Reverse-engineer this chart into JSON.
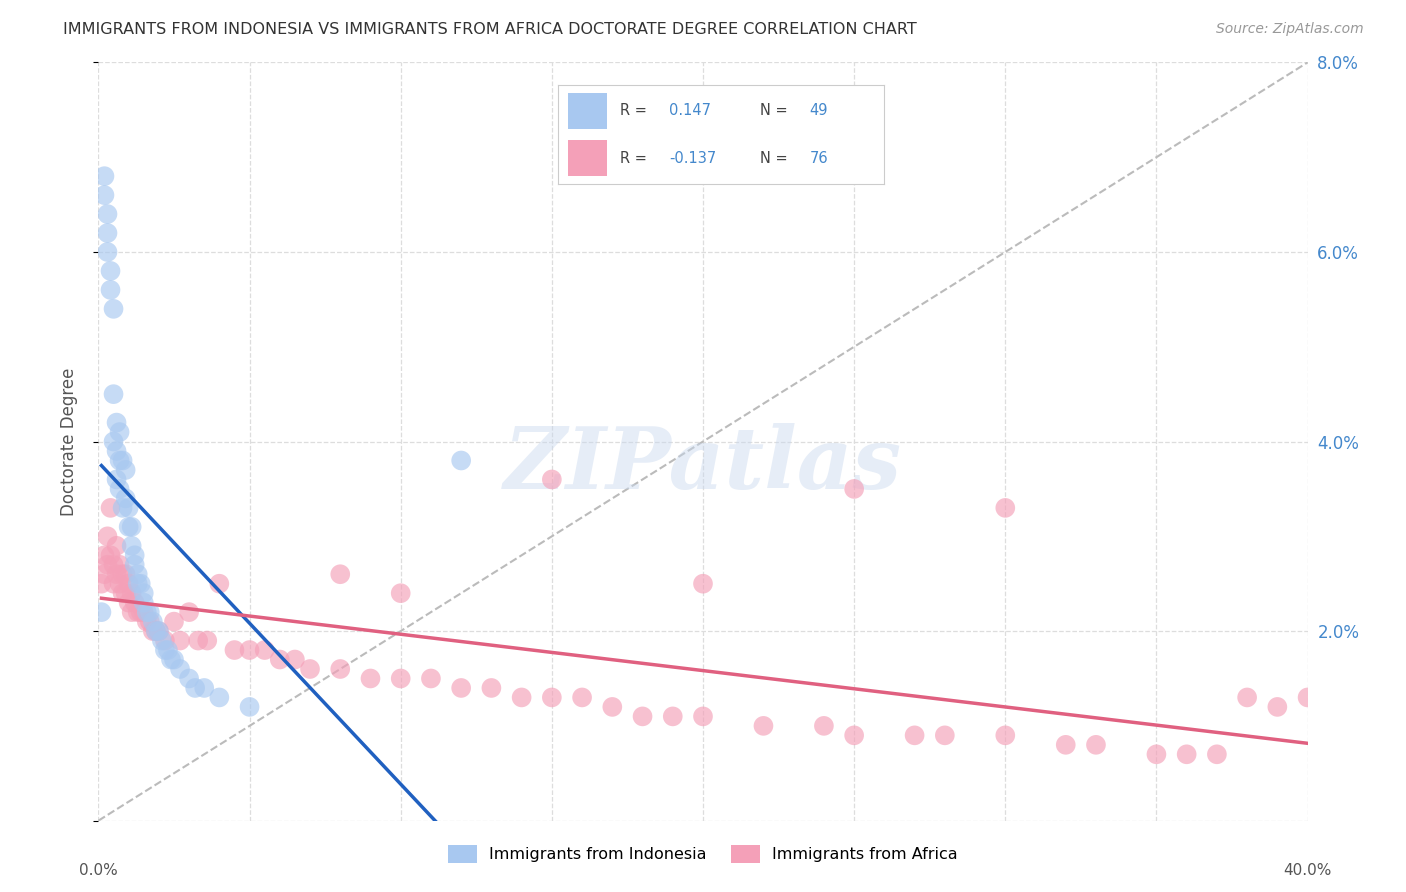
{
  "title": "IMMIGRANTS FROM INDONESIA VS IMMIGRANTS FROM AFRICA DOCTORATE DEGREE CORRELATION CHART",
  "source": "Source: ZipAtlas.com",
  "ylabel": "Doctorate Degree",
  "xlim": [
    0,
    0.4
  ],
  "ylim": [
    0,
    0.08
  ],
  "x_ticks": [
    0.0,
    0.05,
    0.1,
    0.15,
    0.2,
    0.25,
    0.3,
    0.35,
    0.4
  ],
  "y_ticks": [
    0.0,
    0.02,
    0.04,
    0.06,
    0.08
  ],
  "y_tick_labels_right": [
    "",
    "2.0%",
    "4.0%",
    "6.0%",
    "8.0%"
  ],
  "blue_color": "#A8C8F0",
  "pink_color": "#F4A0B8",
  "blue_line_color": "#2060C0",
  "pink_line_color": "#E06080",
  "ref_line_color": "#BBBBBB",
  "background_color": "#FFFFFF",
  "grid_color": "#DDDDDD",
  "title_color": "#333333",
  "source_color": "#999999",
  "watermark": "ZIPatlas",
  "legend_r1": "R =  0.147",
  "legend_n1": "N = 49",
  "legend_r2": "R = -0.137",
  "legend_n2": "N = 76",
  "legend_label1": "Immigrants from Indonesia",
  "legend_label2": "Immigrants from Africa",
  "indonesia_x": [
    0.001,
    0.002,
    0.002,
    0.003,
    0.003,
    0.003,
    0.004,
    0.004,
    0.005,
    0.005,
    0.005,
    0.006,
    0.006,
    0.006,
    0.007,
    0.007,
    0.007,
    0.008,
    0.008,
    0.009,
    0.009,
    0.01,
    0.01,
    0.011,
    0.011,
    0.012,
    0.012,
    0.013,
    0.013,
    0.014,
    0.015,
    0.015,
    0.016,
    0.017,
    0.018,
    0.019,
    0.02,
    0.021,
    0.022,
    0.023,
    0.024,
    0.025,
    0.027,
    0.03,
    0.032,
    0.035,
    0.04,
    0.05,
    0.12
  ],
  "indonesia_y": [
    0.022,
    0.068,
    0.066,
    0.064,
    0.062,
    0.06,
    0.058,
    0.056,
    0.054,
    0.045,
    0.04,
    0.042,
    0.039,
    0.036,
    0.041,
    0.038,
    0.035,
    0.038,
    0.033,
    0.037,
    0.034,
    0.033,
    0.031,
    0.031,
    0.029,
    0.028,
    0.027,
    0.026,
    0.025,
    0.025,
    0.024,
    0.023,
    0.022,
    0.022,
    0.021,
    0.02,
    0.02,
    0.019,
    0.018,
    0.018,
    0.017,
    0.017,
    0.016,
    0.015,
    0.014,
    0.014,
    0.013,
    0.012,
    0.038
  ],
  "africa_x": [
    0.001,
    0.002,
    0.002,
    0.003,
    0.003,
    0.004,
    0.004,
    0.005,
    0.005,
    0.006,
    0.006,
    0.007,
    0.007,
    0.008,
    0.008,
    0.009,
    0.009,
    0.01,
    0.01,
    0.011,
    0.011,
    0.012,
    0.013,
    0.014,
    0.015,
    0.016,
    0.017,
    0.018,
    0.019,
    0.02,
    0.022,
    0.025,
    0.027,
    0.03,
    0.033,
    0.036,
    0.04,
    0.045,
    0.05,
    0.055,
    0.06,
    0.065,
    0.07,
    0.08,
    0.09,
    0.1,
    0.11,
    0.12,
    0.13,
    0.14,
    0.15,
    0.16,
    0.17,
    0.18,
    0.19,
    0.2,
    0.22,
    0.24,
    0.25,
    0.27,
    0.28,
    0.3,
    0.32,
    0.33,
    0.35,
    0.36,
    0.37,
    0.38,
    0.39,
    0.4,
    0.15,
    0.25,
    0.3,
    0.2,
    0.1,
    0.08
  ],
  "africa_y": [
    0.025,
    0.028,
    0.026,
    0.03,
    0.027,
    0.033,
    0.028,
    0.027,
    0.025,
    0.029,
    0.026,
    0.027,
    0.025,
    0.026,
    0.024,
    0.026,
    0.024,
    0.025,
    0.023,
    0.024,
    0.022,
    0.023,
    0.022,
    0.022,
    0.022,
    0.021,
    0.021,
    0.02,
    0.02,
    0.02,
    0.019,
    0.021,
    0.019,
    0.022,
    0.019,
    0.019,
    0.025,
    0.018,
    0.018,
    0.018,
    0.017,
    0.017,
    0.016,
    0.016,
    0.015,
    0.015,
    0.015,
    0.014,
    0.014,
    0.013,
    0.013,
    0.013,
    0.012,
    0.011,
    0.011,
    0.011,
    0.01,
    0.01,
    0.009,
    0.009,
    0.009,
    0.009,
    0.008,
    0.008,
    0.007,
    0.007,
    0.007,
    0.013,
    0.012,
    0.013,
    0.036,
    0.035,
    0.033,
    0.025,
    0.024,
    0.026
  ]
}
